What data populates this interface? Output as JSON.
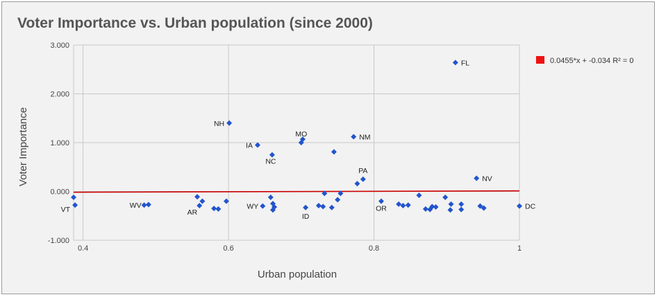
{
  "chart_data": {
    "type": "scatter",
    "title": "Voter Importance vs. Urban population (since 2000)",
    "xlabel": "Urban population",
    "ylabel": "Voter Importance",
    "xlim": [
      0.387,
      1.0
    ],
    "ylim": [
      -1.0,
      3.0
    ],
    "x_ticks": [
      {
        "value": 0.4,
        "label": "0.4"
      },
      {
        "value": 0.6,
        "label": "0.6"
      },
      {
        "value": 0.8,
        "label": "0.8"
      },
      {
        "value": 1.0,
        "label": "1"
      }
    ],
    "y_ticks": [
      {
        "value": 3.0,
        "label": "3.000"
      },
      {
        "value": 2.0,
        "label": "2.000"
      },
      {
        "value": 1.0,
        "label": "1.000"
      },
      {
        "value": 0.0,
        "label": "0.000"
      },
      {
        "value": -1.0,
        "label": "-1.000"
      }
    ],
    "grid": true,
    "point_color": "#2255cc",
    "points": [
      {
        "x": 0.387,
        "y": -0.12,
        "label": ""
      },
      {
        "x": 0.389,
        "y": -0.28,
        "label": "VT"
      },
      {
        "x": 0.484,
        "y": -0.28,
        "label": "WV"
      },
      {
        "x": 0.49,
        "y": -0.27,
        "label": ""
      },
      {
        "x": 0.557,
        "y": -0.11,
        "label": ""
      },
      {
        "x": 0.56,
        "y": -0.29,
        "label": "AR"
      },
      {
        "x": 0.564,
        "y": -0.2,
        "label": ""
      },
      {
        "x": 0.58,
        "y": -0.35,
        "label": ""
      },
      {
        "x": 0.586,
        "y": -0.36,
        "label": ""
      },
      {
        "x": 0.597,
        "y": -0.2,
        "label": ""
      },
      {
        "x": 0.601,
        "y": 1.4,
        "label": "NH"
      },
      {
        "x": 0.64,
        "y": 0.95,
        "label": "IA"
      },
      {
        "x": 0.647,
        "y": -0.3,
        "label": "WY"
      },
      {
        "x": 0.658,
        "y": -0.12,
        "label": ""
      },
      {
        "x": 0.66,
        "y": 0.75,
        "label": "NC"
      },
      {
        "x": 0.661,
        "y": -0.25,
        "label": ""
      },
      {
        "x": 0.661,
        "y": -0.38,
        "label": ""
      },
      {
        "x": 0.663,
        "y": -0.32,
        "label": ""
      },
      {
        "x": 0.7,
        "y": 1.0,
        "label": "MO"
      },
      {
        "x": 0.702,
        "y": 1.07,
        "label": ""
      },
      {
        "x": 0.706,
        "y": -0.33,
        "label": "ID"
      },
      {
        "x": 0.724,
        "y": -0.29,
        "label": ""
      },
      {
        "x": 0.73,
        "y": -0.31,
        "label": ""
      },
      {
        "x": 0.732,
        "y": -0.04,
        "label": ""
      },
      {
        "x": 0.742,
        "y": -0.33,
        "label": ""
      },
      {
        "x": 0.745,
        "y": 0.81,
        "label": ""
      },
      {
        "x": 0.75,
        "y": -0.17,
        "label": ""
      },
      {
        "x": 0.754,
        "y": -0.04,
        "label": ""
      },
      {
        "x": 0.772,
        "y": 1.12,
        "label": "NM"
      },
      {
        "x": 0.777,
        "y": 0.16,
        "label": ""
      },
      {
        "x": 0.785,
        "y": 0.25,
        "label": "PA"
      },
      {
        "x": 0.81,
        "y": -0.2,
        "label": "OR"
      },
      {
        "x": 0.834,
        "y": -0.26,
        "label": ""
      },
      {
        "x": 0.84,
        "y": -0.29,
        "label": ""
      },
      {
        "x": 0.847,
        "y": -0.28,
        "label": ""
      },
      {
        "x": 0.862,
        "y": -0.08,
        "label": ""
      },
      {
        "x": 0.871,
        "y": -0.36,
        "label": ""
      },
      {
        "x": 0.877,
        "y": -0.37,
        "label": ""
      },
      {
        "x": 0.88,
        "y": -0.31,
        "label": ""
      },
      {
        "x": 0.885,
        "y": -0.32,
        "label": ""
      },
      {
        "x": 0.898,
        "y": -0.12,
        "label": ""
      },
      {
        "x": 0.905,
        "y": -0.38,
        "label": ""
      },
      {
        "x": 0.906,
        "y": -0.26,
        "label": ""
      },
      {
        "x": 0.912,
        "y": 2.64,
        "label": "FL"
      },
      {
        "x": 0.92,
        "y": -0.37,
        "label": ""
      },
      {
        "x": 0.92,
        "y": -0.26,
        "label": ""
      },
      {
        "x": 0.941,
        "y": 0.27,
        "label": "NV"
      },
      {
        "x": 0.946,
        "y": -0.3,
        "label": ""
      },
      {
        "x": 0.951,
        "y": -0.34,
        "label": ""
      },
      {
        "x": 1.0,
        "y": -0.3,
        "label": "DC"
      }
    ],
    "trendline": {
      "slope": 0.0455,
      "intercept": -0.034,
      "color": "#cc0000",
      "label": "0.0455*x + -0.034 R² = 0"
    },
    "legend": {
      "position": "right",
      "swatch_color": "#ee1111",
      "text": "0.0455*x + -0.034 R² = 0"
    }
  }
}
